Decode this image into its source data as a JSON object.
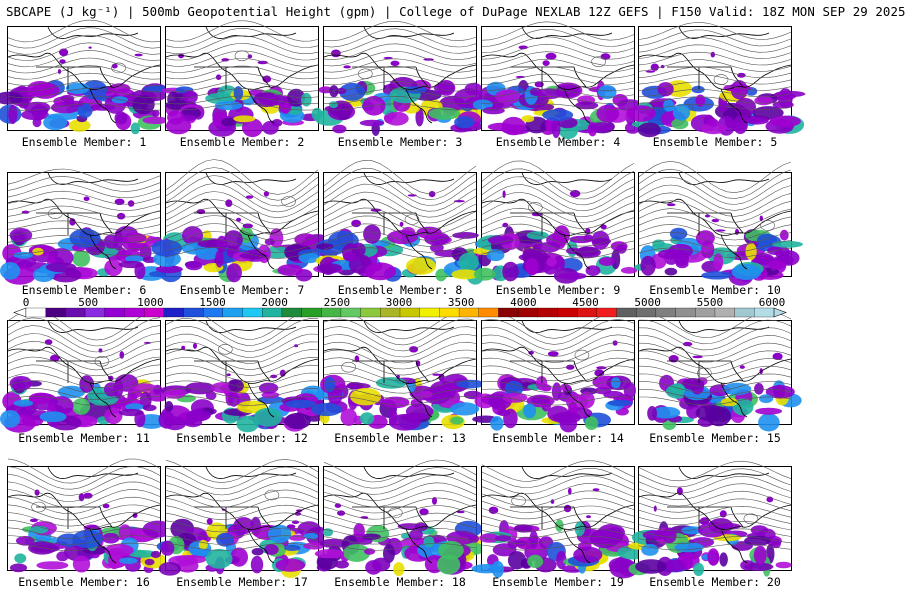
{
  "header": {
    "title": "SBCAPE (J kg⁻¹) | 500mb Geopotential Height (gpm) | College of DuPage NEXLAB 12Z GEFS | F150 Valid: 18Z MON SEP 29 2025"
  },
  "members": [
    {
      "label": "Ensemble Member: 1"
    },
    {
      "label": "Ensemble Member: 2"
    },
    {
      "label": "Ensemble Member: 3"
    },
    {
      "label": "Ensemble Member: 4"
    },
    {
      "label": "Ensemble Member: 5"
    },
    {
      "label": "Ensemble Member: 6"
    },
    {
      "label": "Ensemble Member: 7"
    },
    {
      "label": "Ensemble Member: 8"
    },
    {
      "label": "Ensemble Member: 9"
    },
    {
      "label": "Ensemble Member: 10"
    },
    {
      "label": "Ensemble Member: 11"
    },
    {
      "label": "Ensemble Member: 12"
    },
    {
      "label": "Ensemble Member: 13"
    },
    {
      "label": "Ensemble Member: 14"
    },
    {
      "label": "Ensemble Member: 15"
    },
    {
      "label": "Ensemble Member: 16"
    },
    {
      "label": "Ensemble Member: 17"
    },
    {
      "label": "Ensemble Member: 18"
    },
    {
      "label": "Ensemble Member: 19"
    },
    {
      "label": "Ensemble Member: 20"
    }
  ],
  "colorbar": {
    "ticks": [
      "0",
      "500",
      "1000",
      "1500",
      "2000",
      "2500",
      "3000",
      "3500",
      "4000",
      "4500",
      "5000",
      "5500",
      "6000"
    ],
    "colors": [
      "#ffffff",
      "#4b0082",
      "#6a0dad",
      "#8a2be2",
      "#9400d3",
      "#b000d8",
      "#cc00cc",
      "#2020c8",
      "#1e50dc",
      "#1e78f0",
      "#1ea0f0",
      "#1ec8f0",
      "#20b4a0",
      "#1e8c3c",
      "#28a028",
      "#46b446",
      "#64c864",
      "#8cc83c",
      "#aab428",
      "#c8c800",
      "#f0f000",
      "#ffdc00",
      "#ffb400",
      "#ff8c00",
      "#8b0000",
      "#a00000",
      "#b40000",
      "#c80000",
      "#dc1414",
      "#f01e1e",
      "#606060",
      "#707070",
      "#808080",
      "#909090",
      "#a0a0a0",
      "#b0b0b0",
      "#a0c8d0",
      "#b4dce6"
    ]
  }
}
